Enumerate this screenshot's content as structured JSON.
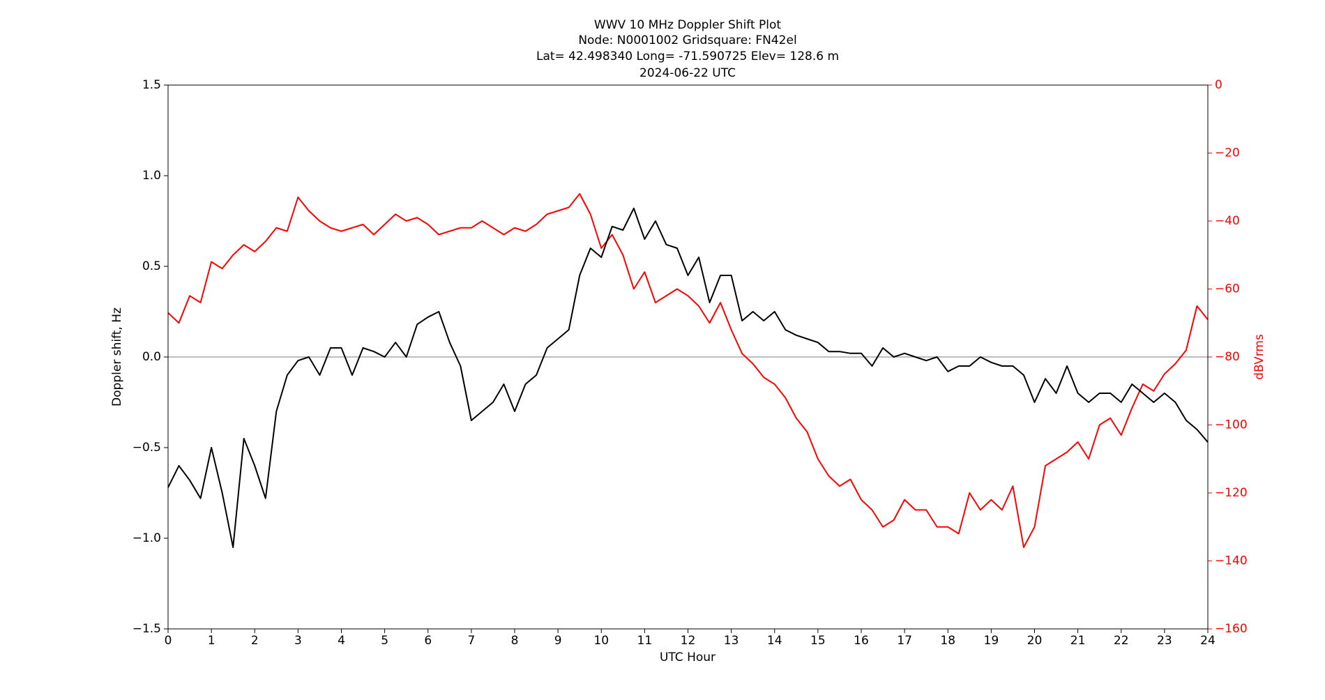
{
  "chart_data": {
    "type": "line",
    "title": [
      "WWV 10 MHz Doppler Shift Plot",
      "Node:  N0001002     Gridsquare:  FN42el",
      "Lat= 42.498340    Long= -71.590725    Elev= 128.6 m",
      "2024-06-22  UTC"
    ],
    "xlabel": "UTC Hour",
    "ylabel": "Doppler shift, Hz",
    "y2label": "dBVrms",
    "xlim": [
      0,
      24
    ],
    "xticks": [
      0,
      1,
      2,
      3,
      4,
      5,
      6,
      7,
      8,
      9,
      10,
      11,
      12,
      13,
      14,
      15,
      16,
      17,
      18,
      19,
      20,
      21,
      22,
      23,
      24
    ],
    "ylim": [
      -1.5,
      1.5
    ],
    "yticks": [
      {
        "value": -1.5,
        "label": "−1.5"
      },
      {
        "value": -1.0,
        "label": "−1.0"
      },
      {
        "value": -0.5,
        "label": "−0.5"
      },
      {
        "value": 0,
        "label": "0.0"
      },
      {
        "value": 0.5,
        "label": "0.5"
      },
      {
        "value": 1.0,
        "label": "1.0"
      },
      {
        "value": 1.5,
        "label": "1.5"
      }
    ],
    "y2lim": [
      -160,
      0
    ],
    "y2ticks": [
      {
        "value": -160,
        "label": "−160"
      },
      {
        "value": -140,
        "label": "−140"
      },
      {
        "value": -120,
        "label": "−120"
      },
      {
        "value": -100,
        "label": "−100"
      },
      {
        "value": -80,
        "label": "−80"
      },
      {
        "value": -60,
        "label": "−60"
      },
      {
        "value": -40,
        "label": "−40"
      },
      {
        "value": -20,
        "label": "−20"
      },
      0
    ],
    "hline": 0,
    "x": [
      0,
      0.25,
      0.5,
      0.75,
      1,
      1.25,
      1.5,
      1.75,
      2,
      2.25,
      2.5,
      2.75,
      3,
      3.25,
      3.5,
      3.75,
      4,
      4.25,
      4.5,
      4.75,
      5,
      5.25,
      5.5,
      5.75,
      6,
      6.25,
      6.5,
      6.75,
      7,
      7.25,
      7.5,
      7.75,
      8,
      8.25,
      8.5,
      8.75,
      9,
      9.25,
      9.5,
      9.75,
      10,
      10.25,
      10.5,
      10.75,
      11,
      11.25,
      11.5,
      11.75,
      12,
      12.25,
      12.5,
      12.75,
      13,
      13.25,
      13.5,
      13.75,
      14,
      14.25,
      14.5,
      14.75,
      15,
      15.25,
      15.5,
      15.75,
      16,
      16.25,
      16.5,
      16.75,
      17,
      17.25,
      17.5,
      17.75,
      18,
      18.25,
      18.5,
      18.75,
      19,
      19.25,
      19.5,
      19.75,
      20,
      20.25,
      20.5,
      20.75,
      21,
      21.25,
      21.5,
      21.75,
      22,
      22.25,
      22.5,
      22.75,
      23,
      23.25,
      23.5,
      23.75,
      24
    ],
    "series": [
      {
        "color": "#000000",
        "values": [
          -0.72,
          -0.6,
          -0.68,
          -0.78,
          -0.5,
          -0.75,
          -1.05,
          -0.45,
          -0.6,
          -0.78,
          -0.3,
          -0.1,
          -0.02,
          0,
          -0.1,
          0.05,
          0.05,
          -0.1,
          0.05,
          0.03,
          0,
          0.08,
          0,
          0.18,
          0.22,
          0.25,
          0.08,
          -0.05,
          -0.35,
          -0.3,
          -0.25,
          -0.15,
          -0.3,
          -0.15,
          -0.1,
          0.05,
          0.1,
          0.15,
          0.45,
          0.6,
          0.55,
          0.72,
          0.7,
          0.82,
          0.65,
          0.75,
          0.62,
          0.6,
          0.45,
          0.55,
          0.3,
          0.45,
          0.45,
          0.2,
          0.25,
          0.2,
          0.25,
          0.15,
          0.12,
          0.1,
          0.08,
          0.03,
          0.03,
          0.02,
          0.02,
          -0.05,
          0.05,
          0,
          0.02,
          0,
          -0.02,
          0,
          -0.08,
          -0.05,
          -0.05,
          0,
          -0.03,
          -0.05,
          -0.05,
          -0.1,
          -0.25,
          -0.12,
          -0.2,
          -0.05,
          -0.2,
          -0.25,
          -0.2,
          -0.2,
          -0.25,
          -0.15,
          -0.2,
          -0.25,
          -0.2,
          -0.25,
          -0.35,
          -0.4,
          -0.47
        ]
      },
      {
        "color": "#ff0000",
        "axis": "y2",
        "values": [
          -67,
          -70,
          -62,
          -64,
          -52,
          -54,
          -50,
          -47,
          -49,
          -46,
          -42,
          -43,
          -33,
          -37,
          -40,
          -42,
          -43,
          -42,
          -41,
          -44,
          -41,
          -38,
          -40,
          -39,
          -41,
          -44,
          -43,
          -42,
          -42,
          -40,
          -42,
          -44,
          -42,
          -43,
          -41,
          -38,
          -37,
          -36,
          -32,
          -38,
          -48,
          -44,
          -50,
          -60,
          -55,
          -64,
          -62,
          -60,
          -62,
          -65,
          -70,
          -64,
          -72,
          -79,
          -82,
          -86,
          -88,
          -92,
          -98,
          -102,
          -110,
          -115,
          -118,
          -116,
          -122,
          -125,
          -130,
          -128,
          -122,
          -125,
          -125,
          -130,
          -130,
          -132,
          -120,
          -125,
          -122,
          -125,
          -118,
          -136,
          -130,
          -112,
          -110,
          -108,
          -105,
          -110,
          -100,
          -98,
          -103,
          -95,
          -88,
          -90,
          -85,
          -82,
          -78,
          -65,
          -69
        ]
      }
    ]
  }
}
